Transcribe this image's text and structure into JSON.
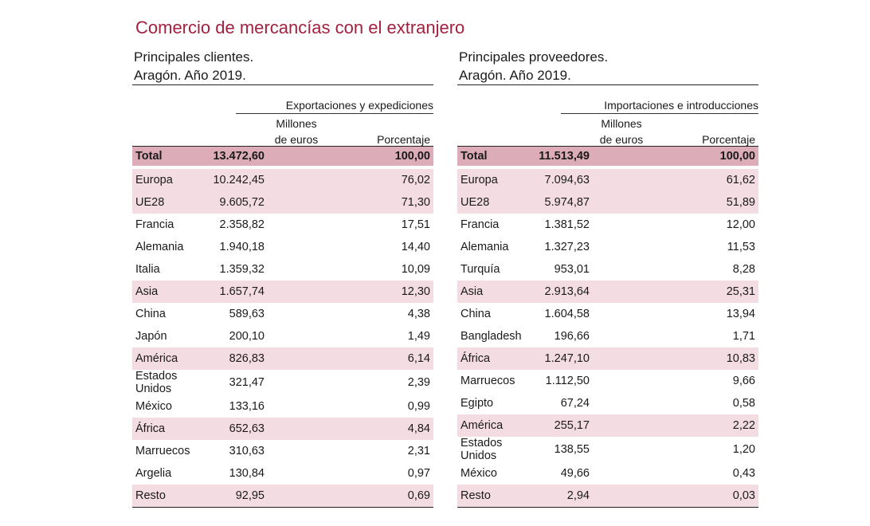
{
  "title": "Comercio de mercancías con el extranjero",
  "left": {
    "subtitle_line1": "Principales clientes.",
    "subtitle_line2": "Aragón. Año 2019.",
    "group_header": "Exportaciones y expediciones",
    "col1_line1": "Millones",
    "col1_line2": "de euros",
    "col2": "Porcentaje",
    "rows": [
      {
        "name": "Total",
        "value": "13.472,60",
        "pct": "100,00",
        "type": "total"
      },
      {
        "name": "Europa",
        "value": "10.242,45",
        "pct": "76,02",
        "type": "region"
      },
      {
        "name": "UE28",
        "value": "9.605,72",
        "pct": "71,30",
        "type": "region"
      },
      {
        "name": "Francia",
        "value": "2.358,82",
        "pct": "17,51",
        "type": "row"
      },
      {
        "name": "Alemania",
        "value": "1.940,18",
        "pct": "14,40",
        "type": "row"
      },
      {
        "name": "Italia",
        "value": "1.359,32",
        "pct": "10,09",
        "type": "row"
      },
      {
        "name": "Asia",
        "value": "1.657,74",
        "pct": "12,30",
        "type": "region"
      },
      {
        "name": "China",
        "value": "589,63",
        "pct": "4,38",
        "type": "row"
      },
      {
        "name": "Japón",
        "value": "200,10",
        "pct": "1,49",
        "type": "row"
      },
      {
        "name": "América",
        "value": "826,83",
        "pct": "6,14",
        "type": "region"
      },
      {
        "name": "Estados Unidos",
        "value": "321,47",
        "pct": "2,39",
        "type": "row"
      },
      {
        "name": "México",
        "value": "133,16",
        "pct": "0,99",
        "type": "row"
      },
      {
        "name": "África",
        "value": "652,63",
        "pct": "4,84",
        "type": "region"
      },
      {
        "name": "Marruecos",
        "value": "310,63",
        "pct": "2,31",
        "type": "row"
      },
      {
        "name": "Argelia",
        "value": "130,84",
        "pct": "0,97",
        "type": "row"
      },
      {
        "name": "Resto",
        "value": "92,95",
        "pct": "0,69",
        "type": "region"
      }
    ]
  },
  "right": {
    "subtitle_line1": "Principales proveedores.",
    "subtitle_line2": "Aragón. Año 2019.",
    "group_header": "Importaciones e introducciones",
    "col1_line1": "Millones",
    "col1_line2": "de euros",
    "col2": "Porcentaje",
    "rows": [
      {
        "name": "Total",
        "value": "11.513,49",
        "pct": "100,00",
        "type": "total"
      },
      {
        "name": "Europa",
        "value": "7.094,63",
        "pct": "61,62",
        "type": "region"
      },
      {
        "name": "UE28",
        "value": "5.974,87",
        "pct": "51,89",
        "type": "region"
      },
      {
        "name": "Francia",
        "value": "1.381,52",
        "pct": "12,00",
        "type": "row"
      },
      {
        "name": "Alemania",
        "value": "1.327,23",
        "pct": "11,53",
        "type": "row"
      },
      {
        "name": "Turquía",
        "value": "953,01",
        "pct": "8,28",
        "type": "row"
      },
      {
        "name": "Asia",
        "value": "2.913,64",
        "pct": "25,31",
        "type": "region"
      },
      {
        "name": "China",
        "value": "1.604,58",
        "pct": "13,94",
        "type": "row"
      },
      {
        "name": "Bangladesh",
        "value": "196,66",
        "pct": "1,71",
        "type": "row"
      },
      {
        "name": "África",
        "value": "1.247,10",
        "pct": "10,83",
        "type": "region"
      },
      {
        "name": "Marruecos",
        "value": "1.112,50",
        "pct": "9,66",
        "type": "row"
      },
      {
        "name": "Egipto",
        "value": "67,24",
        "pct": "0,58",
        "type": "row"
      },
      {
        "name": "América",
        "value": "255,17",
        "pct": "2,22",
        "type": "region"
      },
      {
        "name": "Estados Unidos",
        "value": "138,55",
        "pct": "1,20",
        "type": "row"
      },
      {
        "name": "México",
        "value": "49,66",
        "pct": "0,43",
        "type": "row"
      },
      {
        "name": "Resto",
        "value": "2,94",
        "pct": "0,03",
        "type": "region"
      }
    ]
  }
}
